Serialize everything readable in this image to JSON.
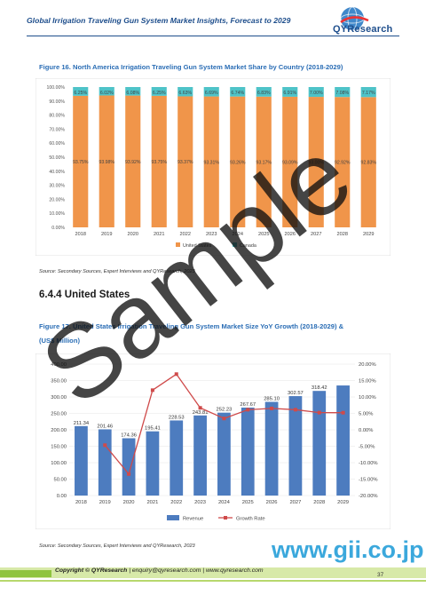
{
  "header": {
    "title": "Global Irrigation Traveling Gun System Market Insights, Forecast to 2029",
    "logo_text": "QYResearch"
  },
  "figure16": {
    "caption": "Figure 16.   North America Irrigation Traveling Gun System Market Share by Country (2018-2029)",
    "source": "Source: Secondary Sources, Expert Interviews and QYResearch, 2023"
  },
  "section": {
    "heading": "6.4.4  United States"
  },
  "figure17": {
    "caption_line1": "Figure 17.   United States Irrigation Traveling Gun System Market Size YoY Growth (2018-2029) &",
    "caption_line2": "(US$ Million)",
    "source": "Source: Secondary Sources, Expert Interviews and QYResearch, 2023"
  },
  "chart_data": [
    {
      "type": "bar",
      "stacked": true,
      "categories": [
        "2018",
        "2019",
        "2020",
        "2021",
        "2022",
        "2023",
        "2024",
        "2025",
        "2026",
        "2027",
        "2028",
        "2029"
      ],
      "series": [
        {
          "name": "United States",
          "values_label": [
            "93.75%",
            "93.98%",
            "93.92%",
            "93.75%",
            "93.37%",
            "93.31%",
            "93.26%",
            "93.17%",
            "93.09%",
            "93.00%",
            "92.92%",
            "92.83%"
          ],
          "values": [
            93.75,
            93.98,
            93.92,
            93.75,
            93.37,
            93.31,
            93.26,
            93.17,
            93.09,
            93.0,
            92.92,
            92.83
          ],
          "color": "#f0954a"
        },
        {
          "name": "Canada",
          "values_label": [
            "6.25%",
            "6.02%",
            "6.08%",
            "6.25%",
            "6.63%",
            "6.69%",
            "6.74%",
            "6.83%",
            "6.91%",
            "7.00%",
            "7.08%",
            "7.17%"
          ],
          "values": [
            6.25,
            6.02,
            6.08,
            6.25,
            6.63,
            6.69,
            6.74,
            6.83,
            6.91,
            7.0,
            7.08,
            7.17
          ],
          "color": "#4ec3c8"
        }
      ],
      "yticks": [
        "0.00%",
        "10.00%",
        "20.00%",
        "30.00%",
        "40.00%",
        "50.00%",
        "60.00%",
        "70.00%",
        "80.00%",
        "90.00%",
        "100.00%"
      ],
      "ylim": [
        0,
        100
      ],
      "legend": "bottom"
    },
    {
      "type": "bar+line",
      "categories": [
        "2018",
        "2019",
        "2020",
        "2021",
        "2022",
        "2023",
        "2024",
        "2025",
        "2026",
        "2027",
        "2028",
        "2029"
      ],
      "series": [
        {
          "name": "Revenue",
          "type": "bar",
          "values": [
            211.34,
            201.46,
            174.36,
            195.41,
            228.53,
            243.81,
            252.23,
            267.67,
            285.1,
            302.57,
            318.42,
            335.0
          ],
          "labels": [
            "211.34",
            "201.46",
            "174.36",
            "195.41",
            "228.53",
            "243.81",
            "252.23",
            "267.67",
            "285.10",
            "302.57",
            "318.42",
            ""
          ],
          "color": "#4d7cbf",
          "axis": "left"
        },
        {
          "name": "Growth Rate",
          "type": "line",
          "values": [
            null,
            -4.67,
            -13.45,
            12.07,
            16.95,
            6.69,
            3.45,
            6.12,
            6.51,
            6.13,
            5.24,
            5.21
          ],
          "color": "#cf4a4a",
          "axis": "right"
        }
      ],
      "yticks_left": [
        "0.00",
        "50.00",
        "100.00",
        "150.00",
        "200.00",
        "250.00",
        "300.00",
        "350.00",
        "400.00"
      ],
      "ylim_left": [
        0,
        400
      ],
      "yticks_right": [
        "-20.00%",
        "-15.00%",
        "-10.00%",
        "-5.00%",
        "0.00%",
        "5.00%",
        "10.00%",
        "15.00%",
        "20.00%"
      ],
      "ylim_right": [
        -20,
        20
      ],
      "legend": "bottom"
    }
  ],
  "watermark": {
    "text": "Sample"
  },
  "footer": {
    "copyright": "Copyright © QYResearch",
    "contact": " | enquiry@qyresearch.com | www.qyresearch.com",
    "page": "37",
    "gii": "www.gii.co.jp"
  }
}
